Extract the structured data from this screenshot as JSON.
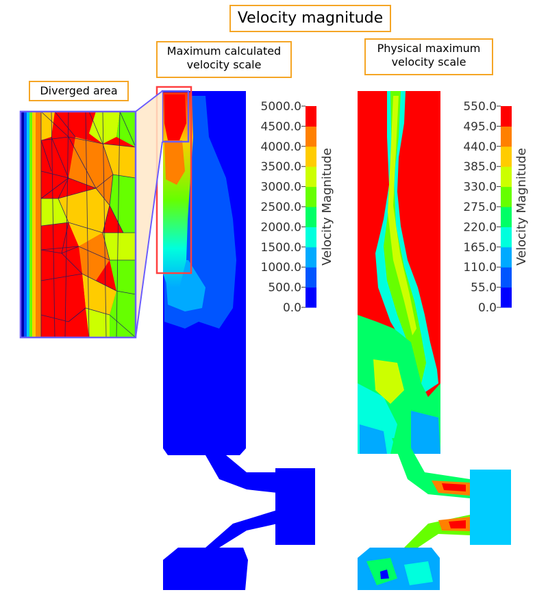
{
  "title": "Velocity magnitude",
  "annotations": {
    "max_calculated": "Maximum calculated\nvelocity scale",
    "physical_max": "Physical maximum\nvelocity scale",
    "diverged_area": "Diverged area"
  },
  "colorbar_left": {
    "title": "Velocity Magnitude",
    "ticks": [
      "5000.0",
      "4500.0",
      "4000.0",
      "3500.0",
      "3000.0",
      "2500.0",
      "2000.0",
      "1500.0",
      "1000.0",
      "500.0",
      "0.0"
    ]
  },
  "colorbar_right": {
    "title": "Velocity Magnitude",
    "ticks": [
      "550.0",
      "495.0",
      "440.0",
      "385.0",
      "330.0",
      "275.0",
      "220.0",
      "165.0",
      "110.0",
      "55.0",
      "0.0"
    ]
  },
  "colors": {
    "scale": [
      "#0000ff",
      "#0055ff",
      "#00aaff",
      "#00ffdd",
      "#00ff66",
      "#66ff00",
      "#ccff00",
      "#ffcc00",
      "#ff8000",
      "#ff0000"
    ],
    "annotation_border": "#f5a524",
    "highlight_red": "#ff4040",
    "highlight_blue": "#6a5cff"
  }
}
